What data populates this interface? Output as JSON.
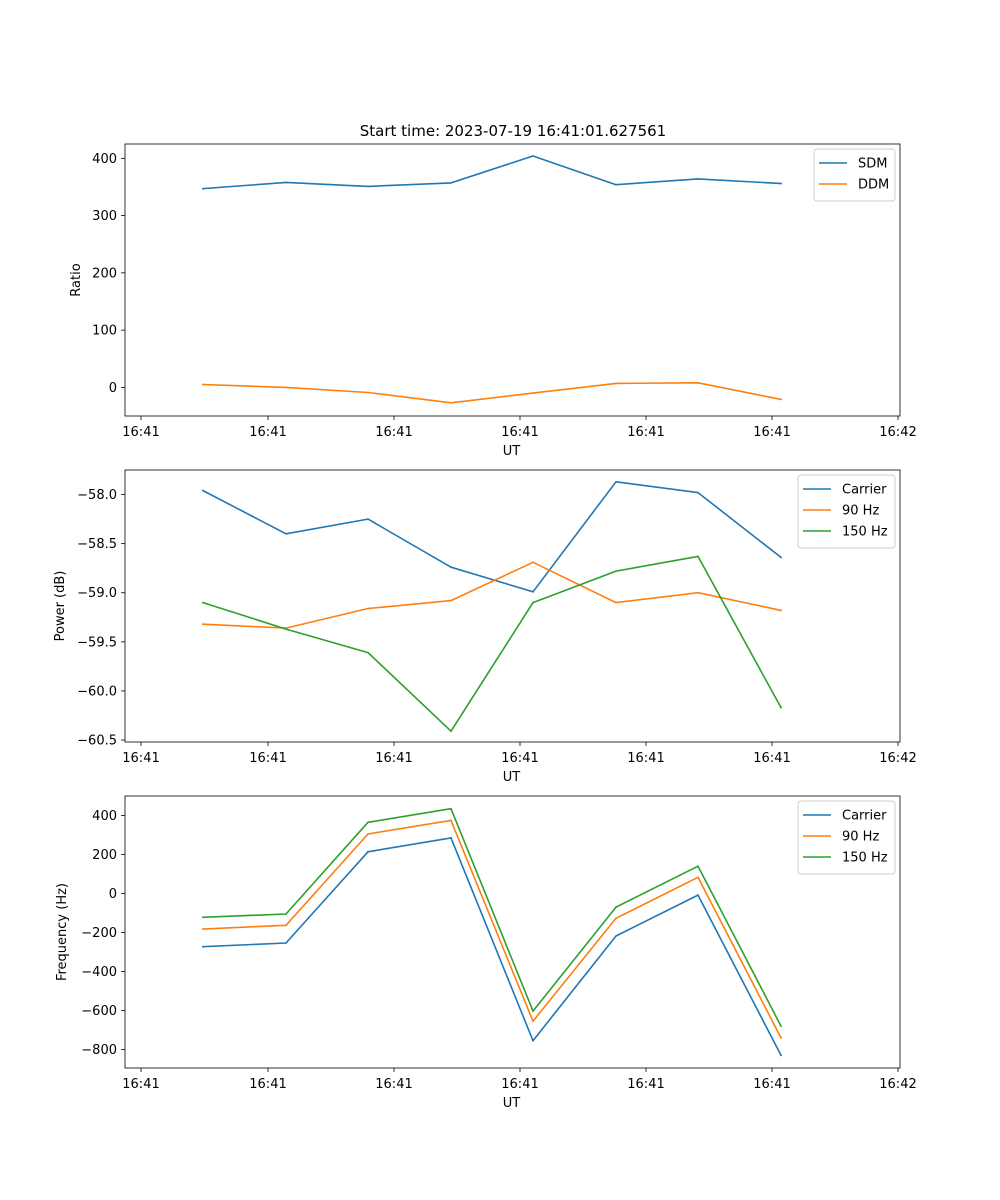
{
  "title": "Start time: 2023-07-19 16:41:01.627561",
  "colors": {
    "blue": "#1f77b4",
    "orange": "#ff7f0e",
    "green": "#2ca02c"
  },
  "chart_data": [
    {
      "type": "line",
      "xlabel": "UT",
      "ylabel": "Ratio",
      "xtick_labels": [
        "16:41",
        "16:41",
        "16:41",
        "16:41",
        "16:41",
        "16:41",
        "16:42"
      ],
      "ylim": [
        -50,
        425
      ],
      "yticks": [
        0,
        100,
        200,
        300,
        400
      ],
      "ytick_labels": [
        "0",
        "100",
        "200",
        "300",
        "400"
      ],
      "legend_position": "top-right",
      "series": [
        {
          "name": "SDM",
          "color": "#1f77b4",
          "values": [
            347,
            358,
            351,
            357,
            404,
            354,
            364,
            356
          ]
        },
        {
          "name": "DDM",
          "color": "#ff7f0e",
          "values": [
            5,
            0,
            -9,
            -27,
            -10,
            7,
            8,
            -21
          ]
        }
      ]
    },
    {
      "type": "line",
      "xlabel": "UT",
      "ylabel": "Power (dB)",
      "xtick_labels": [
        "16:41",
        "16:41",
        "16:41",
        "16:41",
        "16:41",
        "16:41",
        "16:42"
      ],
      "ylim": [
        -60.52,
        -57.75
      ],
      "yticks": [
        -60.5,
        -60.0,
        -59.5,
        -59.0,
        -58.5,
        -58.0
      ],
      "ytick_labels": [
        "−60.5",
        "−60.0",
        "−59.5",
        "−59.0",
        "−58.5",
        "−58.0"
      ],
      "legend_position": "top-right",
      "series": [
        {
          "name": "Carrier",
          "color": "#1f77b4",
          "values": [
            -57.96,
            -58.4,
            -58.25,
            -58.74,
            -58.99,
            -57.87,
            -57.98,
            -58.64
          ]
        },
        {
          "name": "90 Hz",
          "color": "#ff7f0e",
          "values": [
            -59.32,
            -59.36,
            -59.16,
            -59.08,
            -58.69,
            -59.1,
            -59.0,
            -59.18
          ]
        },
        {
          "name": "150 Hz",
          "color": "#2ca02c",
          "values": [
            -59.1,
            -59.37,
            -59.61,
            -60.41,
            -59.1,
            -58.78,
            -58.63,
            -60.17
          ]
        }
      ]
    },
    {
      "type": "line",
      "xlabel": "UT",
      "ylabel": "Frequency (Hz)",
      "xtick_labels": [
        "16:41",
        "16:41",
        "16:41",
        "16:41",
        "16:41",
        "16:41",
        "16:42"
      ],
      "ylim": [
        -895,
        500
      ],
      "yticks": [
        -800,
        -600,
        -400,
        -200,
        0,
        200,
        400
      ],
      "ytick_labels": [
        "−800",
        "−600",
        "−400",
        "−200",
        "0",
        "200",
        "400"
      ],
      "legend_position": "top-right",
      "series": [
        {
          "name": "Carrier",
          "color": "#1f77b4",
          "values": [
            -273,
            -254,
            214,
            285,
            -755,
            -218,
            -8,
            -830
          ]
        },
        {
          "name": "90 Hz",
          "color": "#ff7f0e",
          "values": [
            -182,
            -163,
            305,
            375,
            -655,
            -127,
            83,
            -740
          ]
        },
        {
          "name": "150 Hz",
          "color": "#2ca02c",
          "values": [
            -122,
            -105,
            365,
            435,
            -603,
            -70,
            140,
            -680
          ]
        }
      ]
    }
  ]
}
